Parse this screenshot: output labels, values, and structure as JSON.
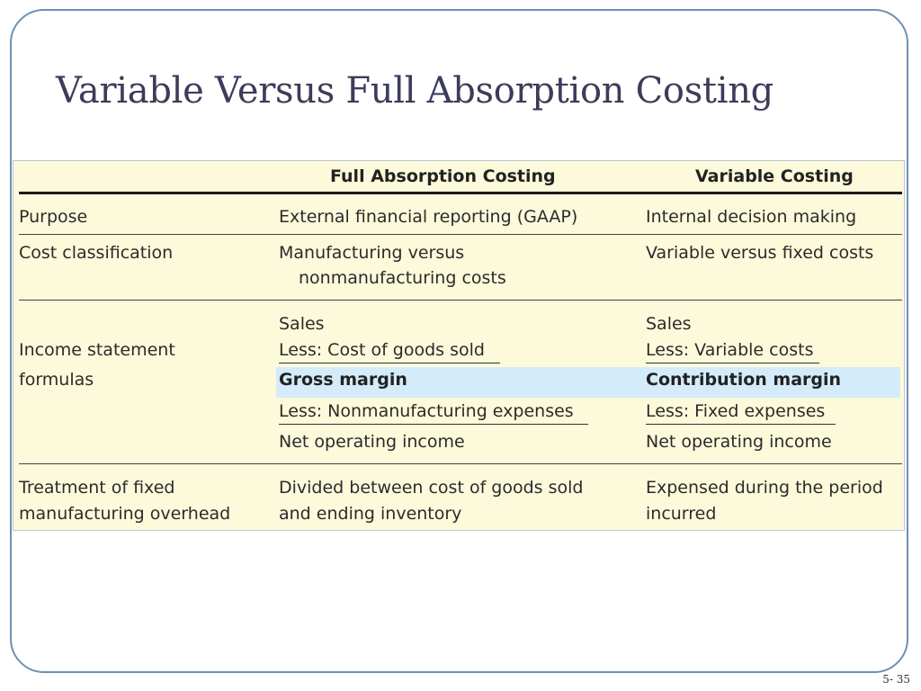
{
  "slide": {
    "title": "Variable Versus Full Absorption Costing",
    "page_number": "5- 35"
  },
  "table": {
    "headers": {
      "full": "Full Absorption Costing",
      "variable": "Variable Costing"
    },
    "purpose": {
      "label": "Purpose",
      "full": "External financial reporting (GAAP)",
      "variable": "Internal decision making"
    },
    "cost_classification": {
      "label": "Cost classification",
      "full_line1": "Manufacturing versus",
      "full_line2": "nonmanufacturing costs",
      "variable": "Variable versus fixed costs"
    },
    "income_statement": {
      "label_line1": "Income statement",
      "label_line2": "formulas",
      "full": {
        "sales": "Sales",
        "less_cost": "Less: Cost of goods sold",
        "margin": "Gross margin",
        "less_expenses": "Less: Nonmanufacturing expenses",
        "net": "Net operating income"
      },
      "variable": {
        "sales": "Sales",
        "less_cost": "Less: Variable costs",
        "margin": "Contribution margin",
        "less_expenses": "Less: Fixed expenses",
        "net": "Net operating income"
      },
      "highlight_color": "#d4ecfa"
    },
    "fixed_overhead": {
      "label_line1": "Treatment of fixed",
      "label_line2": "manufacturing overhead",
      "full_line1": "Divided between cost of goods sold",
      "full_line2": "and ending inventory",
      "variable_line1": "Expensed during the period",
      "variable_line2": "incurred"
    },
    "background_color": "#fcfadb"
  }
}
